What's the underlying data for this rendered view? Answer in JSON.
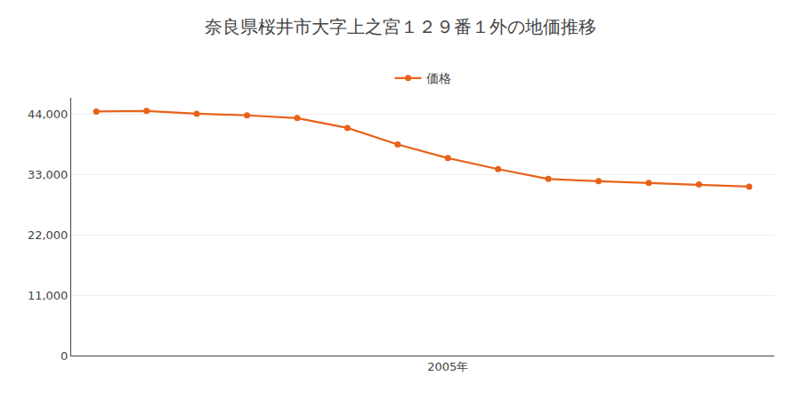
{
  "chart_data": {
    "type": "line",
    "title": "奈良県桜井市大字上之宮１２９番１外の地価推移",
    "x": [
      1998,
      1999,
      2000,
      2001,
      2002,
      2003,
      2004,
      2005,
      2006,
      2007,
      2008,
      2009,
      2010,
      2011
    ],
    "series": [
      {
        "name": "価格",
        "color": "#E8621A",
        "marker": "circle",
        "line_style": "solid",
        "values": [
          44500,
          44600,
          44100,
          43800,
          43300,
          41500,
          38500,
          36000,
          34000,
          32200,
          31800,
          31500,
          31200,
          30800
        ]
      }
    ],
    "xlim": [
      1997.5,
      2011.5
    ],
    "xticks": [
      {
        "value": 2005,
        "label": "2005年"
      }
    ],
    "ylim": [
      0,
      47000
    ],
    "yticks": [
      0,
      {
        "value": 11000,
        "label": "11,000"
      },
      {
        "value": 22000,
        "label": "22,000"
      },
      {
        "value": 33000,
        "label": "33,000"
      },
      {
        "value": 44000,
        "label": "44,000"
      }
    ],
    "grid": true,
    "legend": "top"
  }
}
